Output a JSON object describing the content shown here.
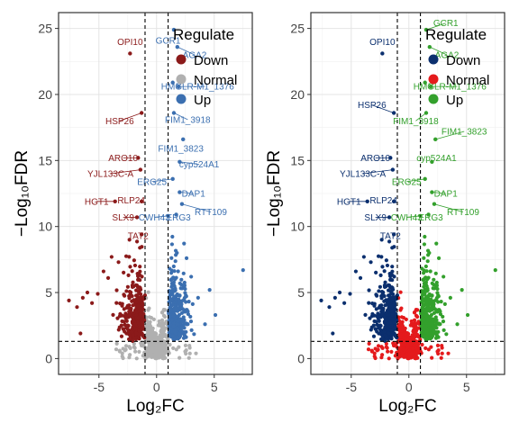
{
  "chart_data": [
    {
      "type": "scatter",
      "title": "",
      "xlabel": "Log₂FC",
      "ylabel": "−Log₁₀FDR",
      "xlim": [
        -8.5,
        8.3
      ],
      "ylim": [
        -1.2,
        26.2
      ],
      "xticks": [
        -5,
        0,
        5
      ],
      "yticks": [
        0,
        5,
        10,
        15,
        20,
        25
      ],
      "grid": true,
      "thresholds": {
        "x": [
          -1,
          1
        ],
        "y": 1.3
      },
      "legend": {
        "title": "Regulate",
        "placement": "top-right-inside",
        "entries": [
          {
            "label": "Down",
            "color": "#8B1A1A"
          },
          {
            "label": "Normal",
            "color": "#B0B0B0"
          },
          {
            "label": "Up",
            "color": "#3B6FB0"
          }
        ]
      },
      "colors": {
        "Down": "#8B1A1A",
        "Normal": "#B0B0B0",
        "Up": "#3B6FB0"
      },
      "labeled_genes": [
        {
          "gene": "OPI10",
          "x": -2.3,
          "y": 23.1,
          "regulate": "Down",
          "label_x": -2.3,
          "label_y": 24.0
        },
        {
          "gene": "HSP26",
          "x": -1.3,
          "y": 18.6,
          "regulate": "Down",
          "label_x": -3.2,
          "label_y": 18.0
        },
        {
          "gene": "ARO10",
          "x": -1.6,
          "y": 15.2,
          "regulate": "Down",
          "label_x": -2.9,
          "label_y": 15.2
        },
        {
          "gene": "YJL133C-A",
          "x": -1.4,
          "y": 14.3,
          "regulate": "Down",
          "label_x": -4.0,
          "label_y": 14.0
        },
        {
          "gene": "HGT1",
          "x": -3.6,
          "y": 11.9,
          "regulate": "Down",
          "label_x": -5.2,
          "label_y": 11.9
        },
        {
          "gene": "RLP24",
          "x": -1.3,
          "y": 11.9,
          "regulate": "Down",
          "label_x": -2.2,
          "label_y": 12.0
        },
        {
          "gene": "SLX9",
          "x": -1.7,
          "y": 10.7,
          "regulate": "Down",
          "label_x": -2.9,
          "label_y": 10.7
        },
        {
          "gene": "TAT2",
          "x": -1.3,
          "y": 9.4,
          "regulate": "Down",
          "label_x": -1.6,
          "label_y": 9.3
        },
        {
          "gene": "GCR1",
          "x": 1.5,
          "y": 24.9,
          "regulate": "Up",
          "label_x": 1.0,
          "label_y": 24.1
        },
        {
          "gene": "AGA2",
          "x": 1.8,
          "y": 23.6,
          "regulate": "Up",
          "label_x": 3.3,
          "label_y": 23.0
        },
        {
          "gene": "HMG",
          "x": 1.4,
          "y": 20.9,
          "regulate": "Up",
          "label_x": 1.3,
          "label_y": 20.6
        },
        {
          "gene": "YLR-M1_1376",
          "x": 1.9,
          "y": 20.6,
          "regulate": "Up",
          "label_x": 4.2,
          "label_y": 20.6
        },
        {
          "gene": "FIM1_3918",
          "x": 1.5,
          "y": 18.6,
          "regulate": "Up",
          "label_x": 2.7,
          "label_y": 18.1
        },
        {
          "gene": "FIM1_3823",
          "x": 2.3,
          "y": 16.6,
          "regulate": "Up",
          "label_x": 2.1,
          "label_y": 15.9
        },
        {
          "gene": "cyp524A1",
          "x": 2.0,
          "y": 14.9,
          "regulate": "Up",
          "label_x": 3.7,
          "label_y": 14.7
        },
        {
          "gene": "ERG25",
          "x": 1.4,
          "y": 13.6,
          "regulate": "Up",
          "label_x": -0.4,
          "label_y": 13.4
        },
        {
          "gene": "DAP1",
          "x": 2.0,
          "y": 12.6,
          "regulate": "Up",
          "label_x": 3.2,
          "label_y": 12.5
        },
        {
          "gene": "RTT109",
          "x": 2.2,
          "y": 11.7,
          "regulate": "Up",
          "label_x": 4.7,
          "label_y": 11.1
        },
        {
          "gene": "CWH43",
          "x": 1.0,
          "y": 10.8,
          "regulate": "Up",
          "label_x": -0.2,
          "label_y": 10.7
        },
        {
          "gene": "ERG3",
          "x": 1.7,
          "y": 10.9,
          "regulate": "Up",
          "label_x": 1.9,
          "label_y": 10.7
        }
      ],
      "extra_points": [
        {
          "x": 7.5,
          "y": 6.7,
          "regulate": "Up"
        },
        {
          "x": -7.6,
          "y": 4.4,
          "regulate": "Down"
        },
        {
          "x": -6.9,
          "y": 3.9,
          "regulate": "Down"
        },
        {
          "x": -6.4,
          "y": 4.6,
          "regulate": "Down"
        },
        {
          "x": -6.0,
          "y": 5.0,
          "regulate": "Down"
        },
        {
          "x": -5.6,
          "y": 4.2,
          "regulate": "Down"
        },
        {
          "x": -5.1,
          "y": 4.9,
          "regulate": "Down"
        },
        {
          "x": -4.6,
          "y": 6.6,
          "regulate": "Down"
        },
        {
          "x": -4.2,
          "y": 6.1,
          "regulate": "Down"
        },
        {
          "x": -3.9,
          "y": 7.7,
          "regulate": "Down"
        },
        {
          "x": -3.3,
          "y": 7.3,
          "regulate": "Down"
        },
        {
          "x": 2.6,
          "y": 7.6,
          "regulate": "Up"
        },
        {
          "x": 3.0,
          "y": 6.2,
          "regulate": "Up"
        },
        {
          "x": 3.6,
          "y": 4.6,
          "regulate": "Up"
        },
        {
          "x": 4.6,
          "y": 5.2,
          "regulate": "Up"
        },
        {
          "x": 5.1,
          "y": 3.3,
          "regulate": "Up"
        },
        {
          "x": -6.6,
          "y": 1.9,
          "regulate": "Down"
        },
        {
          "x": 4.2,
          "y": 2.6,
          "regulate": "Up"
        }
      ]
    },
    {
      "type": "scatter",
      "title": "",
      "xlabel": "Log₂FC",
      "ylabel": "−Log₁₀FDR",
      "xlim": [
        -8.5,
        8.3
      ],
      "ylim": [
        -1.2,
        26.2
      ],
      "xticks": [
        -5,
        0,
        5
      ],
      "yticks": [
        0,
        5,
        10,
        15,
        20,
        25
      ],
      "grid": true,
      "thresholds": {
        "x": [
          -1,
          1
        ],
        "y": 1.3
      },
      "legend": {
        "title": "Regulate",
        "placement": "top-right-inside",
        "entries": [
          {
            "label": "Down",
            "color": "#0B2F6E"
          },
          {
            "label": "Normal",
            "color": "#E41A1C"
          },
          {
            "label": "Up",
            "color": "#33A02C"
          }
        ]
      },
      "colors": {
        "Down": "#0B2F6E",
        "Normal": "#E41A1C",
        "Up": "#33A02C"
      },
      "labeled_genes": [
        {
          "gene": "OPI10",
          "x": -2.3,
          "y": 23.1,
          "regulate": "Down",
          "label_x": -2.3,
          "label_y": 24.0
        },
        {
          "gene": "HSP26",
          "x": -1.3,
          "y": 18.6,
          "regulate": "Down",
          "label_x": -3.2,
          "label_y": 19.2
        },
        {
          "gene": "ARO10",
          "x": -1.6,
          "y": 15.2,
          "regulate": "Down",
          "label_x": -2.9,
          "label_y": 15.2
        },
        {
          "gene": "YJL133C-A",
          "x": -1.4,
          "y": 14.3,
          "regulate": "Down",
          "label_x": -4.0,
          "label_y": 14.0
        },
        {
          "gene": "HGT1",
          "x": -3.6,
          "y": 11.9,
          "regulate": "Down",
          "label_x": -5.2,
          "label_y": 11.9
        },
        {
          "gene": "RLP24",
          "x": -1.3,
          "y": 11.9,
          "regulate": "Down",
          "label_x": -2.2,
          "label_y": 12.0
        },
        {
          "gene": "SLX9",
          "x": -1.7,
          "y": 10.7,
          "regulate": "Down",
          "label_x": -2.9,
          "label_y": 10.7
        },
        {
          "gene": "TAT2",
          "x": -1.3,
          "y": 9.4,
          "regulate": "Down",
          "label_x": -1.6,
          "label_y": 9.3
        },
        {
          "gene": "GCR1",
          "x": 1.5,
          "y": 24.9,
          "regulate": "Up",
          "label_x": 3.2,
          "label_y": 25.4
        },
        {
          "gene": "AGA2",
          "x": 1.8,
          "y": 23.6,
          "regulate": "Up",
          "label_x": 3.3,
          "label_y": 23.0
        },
        {
          "gene": "HMG",
          "x": 1.4,
          "y": 20.9,
          "regulate": "Up",
          "label_x": 1.3,
          "label_y": 20.6
        },
        {
          "gene": "YLR-M1_1376",
          "x": 1.9,
          "y": 20.6,
          "regulate": "Up",
          "label_x": 4.2,
          "label_y": 20.6
        },
        {
          "gene": "FIM1_3918",
          "x": 1.5,
          "y": 18.6,
          "regulate": "Up",
          "label_x": 0.6,
          "label_y": 18.0
        },
        {
          "gene": "FIM1_3823",
          "x": 2.3,
          "y": 16.6,
          "regulate": "Up",
          "label_x": 4.8,
          "label_y": 17.2
        },
        {
          "gene": "cyp524A1",
          "x": 2.0,
          "y": 14.9,
          "regulate": "Up",
          "label_x": 2.4,
          "label_y": 15.2
        },
        {
          "gene": "ERG25",
          "x": 1.4,
          "y": 13.6,
          "regulate": "Up",
          "label_x": -0.2,
          "label_y": 13.4
        },
        {
          "gene": "DAP1",
          "x": 2.0,
          "y": 12.6,
          "regulate": "Up",
          "label_x": 3.2,
          "label_y": 12.5
        },
        {
          "gene": "RTT109",
          "x": 2.2,
          "y": 11.7,
          "regulate": "Up",
          "label_x": 4.7,
          "label_y": 11.1
        },
        {
          "gene": "CWH43",
          "x": 1.0,
          "y": 10.8,
          "regulate": "Up",
          "label_x": -0.2,
          "label_y": 10.7
        },
        {
          "gene": "ERG3",
          "x": 1.7,
          "y": 10.9,
          "regulate": "Up",
          "label_x": 1.9,
          "label_y": 10.7
        }
      ],
      "extra_points": [
        {
          "x": 7.5,
          "y": 6.7,
          "regulate": "Up"
        },
        {
          "x": -7.6,
          "y": 4.4,
          "regulate": "Down"
        },
        {
          "x": -6.9,
          "y": 3.9,
          "regulate": "Down"
        },
        {
          "x": -6.4,
          "y": 4.6,
          "regulate": "Down"
        },
        {
          "x": -6.0,
          "y": 5.0,
          "regulate": "Down"
        },
        {
          "x": -5.6,
          "y": 4.2,
          "regulate": "Down"
        },
        {
          "x": -5.1,
          "y": 4.9,
          "regulate": "Down"
        },
        {
          "x": -4.6,
          "y": 6.6,
          "regulate": "Down"
        },
        {
          "x": -4.2,
          "y": 6.1,
          "regulate": "Down"
        },
        {
          "x": -3.9,
          "y": 7.7,
          "regulate": "Down"
        },
        {
          "x": -3.3,
          "y": 7.3,
          "regulate": "Down"
        },
        {
          "x": 2.6,
          "y": 7.6,
          "regulate": "Up"
        },
        {
          "x": 3.0,
          "y": 6.2,
          "regulate": "Up"
        },
        {
          "x": 3.6,
          "y": 4.6,
          "regulate": "Up"
        },
        {
          "x": 4.6,
          "y": 5.2,
          "regulate": "Up"
        },
        {
          "x": 5.1,
          "y": 3.3,
          "regulate": "Up"
        },
        {
          "x": -6.6,
          "y": 1.9,
          "regulate": "Down"
        },
        {
          "x": 4.2,
          "y": 2.6,
          "regulate": "Up"
        }
      ]
    }
  ]
}
